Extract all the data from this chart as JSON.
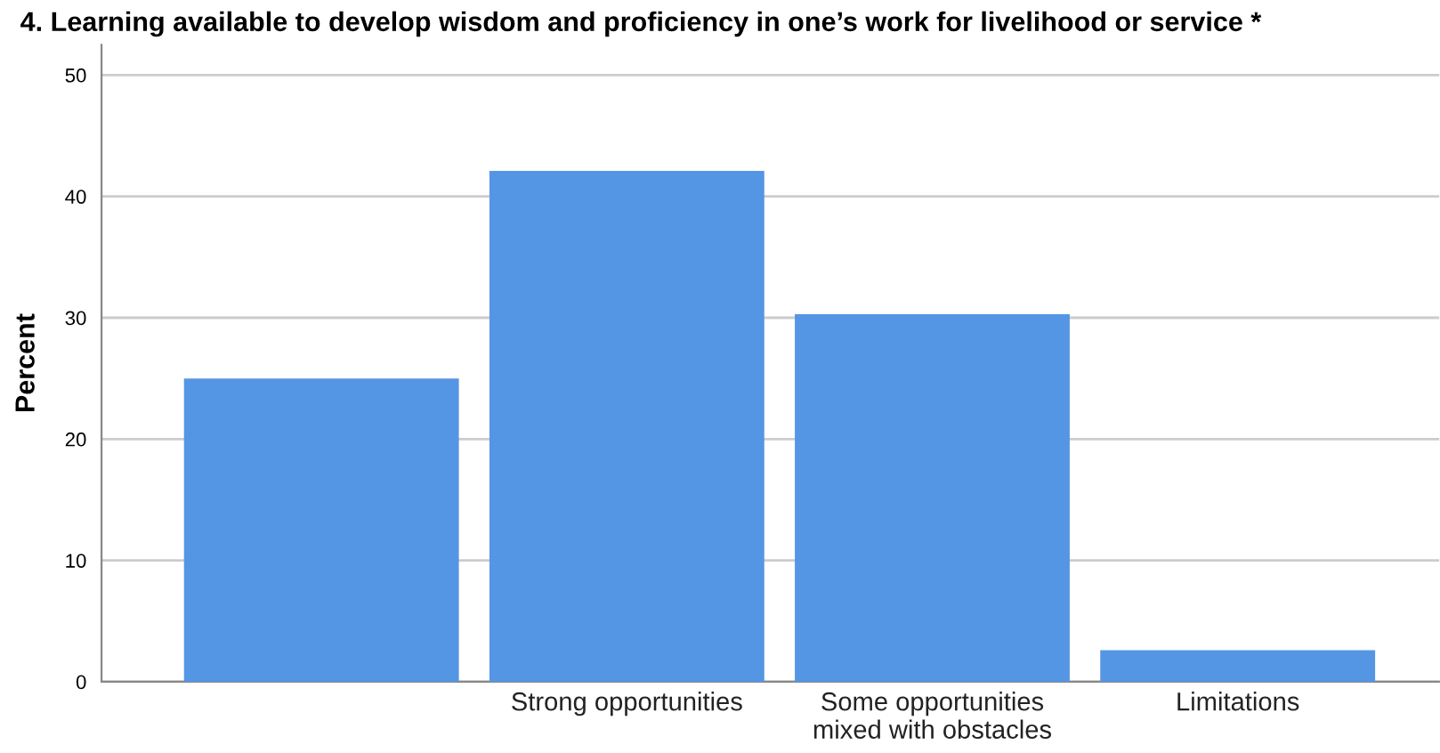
{
  "chart_data": {
    "type": "bar",
    "title": "4. Learning available to develop wisdom and proficiency in one’s work for livelihood or service *",
    "ylabel": "Percent",
    "categories": [
      null,
      "Strong opportunities",
      "Some opportunities\nmixed with obstacles",
      "Limitations"
    ],
    "values": [
      25.0,
      42.1,
      30.3,
      2.6
    ],
    "color": "#5596e4",
    "ylim": [
      0,
      52.5
    ],
    "yticks": [
      0,
      10,
      20,
      30,
      40,
      50
    ],
    "grid": "y"
  }
}
